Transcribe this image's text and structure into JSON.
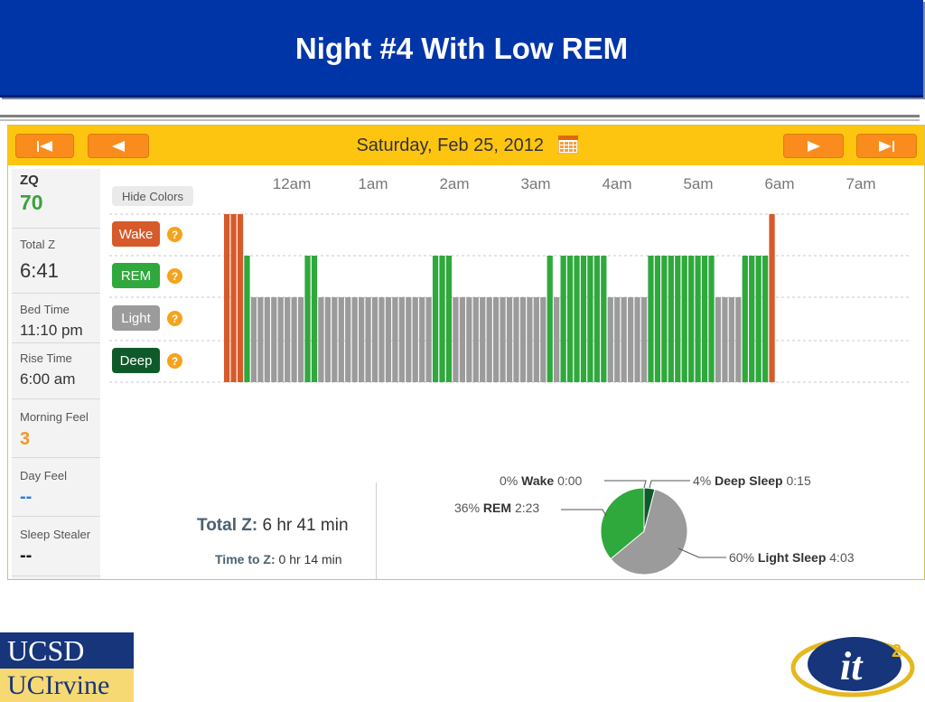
{
  "slide": {
    "title": "Night #4 With Low REM"
  },
  "nav": {
    "date": "Saturday, Feb 25, 2012"
  },
  "sidebar": [
    {
      "label": "ZQ",
      "value": "70",
      "value_color": "#3aa23a",
      "label_style": "bold"
    },
    {
      "label": "Total Z",
      "value": "6:41"
    },
    {
      "label": "Bed Time",
      "value": "11:10 pm"
    },
    {
      "label": "Rise Time",
      "value": "6:00 am"
    },
    {
      "label": "Morning Feel",
      "value": "3",
      "value_color": "#f5952a"
    },
    {
      "label": "Day Feel",
      "value": "--",
      "value_color": "#2a7fd0"
    },
    {
      "label": "Sleep Stealer",
      "value": "--"
    }
  ],
  "hypnogram": {
    "hide_colors_label": "Hide Colors",
    "help_symbol": "?",
    "time_labels": [
      "12am",
      "1am",
      "2am",
      "3am",
      "4am",
      "5am",
      "6am",
      "7am"
    ],
    "legend": [
      {
        "label": "Wake",
        "color": "#d65a2a"
      },
      {
        "label": "REM",
        "color": "#2fa83c"
      },
      {
        "label": "Light",
        "color": "#9b9b9b"
      },
      {
        "label": "Deep",
        "color": "#0f5a2a"
      }
    ],
    "stage_segments": [
      [
        "Wake",
        3
      ],
      [
        "REM",
        1
      ],
      [
        "Light",
        8
      ],
      [
        "REM",
        2
      ],
      [
        "Light",
        17
      ],
      [
        "REM",
        3
      ],
      [
        "Light",
        14
      ],
      [
        "REM",
        1
      ],
      [
        "Light",
        1
      ],
      [
        "REM",
        7
      ],
      [
        "Light",
        6
      ],
      [
        "REM",
        10
      ],
      [
        "Light",
        4
      ],
      [
        "REM",
        4
      ],
      [
        "Wake",
        1
      ]
    ]
  },
  "summary": {
    "total_z_label": "Total Z:",
    "total_z_value": "6 hr 41 min",
    "time_to_z_label": "Time to Z:",
    "time_to_z_value": "0 hr 14 min"
  },
  "chart_data": {
    "type": "pie",
    "categories": [
      "Wake",
      "REM",
      "Light Sleep",
      "Deep Sleep"
    ],
    "values": [
      0,
      36,
      60,
      4
    ],
    "percent_labels": [
      "0%",
      "36%",
      "60%",
      "4%"
    ],
    "durations": [
      "0:00",
      "2:23",
      "4:03",
      "0:15"
    ],
    "colors": [
      "#d65a2a",
      "#2fa83c",
      "#9b9b9b",
      "#0f5a2a"
    ]
  },
  "logos": {
    "ucsd": "UCSD",
    "uci": "UCIrvine",
    "it2": "it",
    "it2_sup": "2"
  }
}
